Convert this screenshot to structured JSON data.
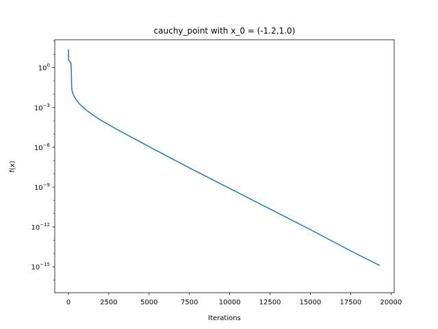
{
  "chart_data": {
    "type": "line",
    "title": "cauchy_point with x_0 = (-1.2,1.0)",
    "xlabel": "Iterations",
    "ylabel": "f(x)",
    "yscale": "log",
    "xlim": [
      -850,
      20200
    ],
    "ylim_log10": [
      -16.95,
      2.1
    ],
    "x_ticks": [
      {
        "value": 0,
        "label": "0"
      },
      {
        "value": 2500,
        "label": "2500"
      },
      {
        "value": 5000,
        "label": "5000"
      },
      {
        "value": 7500,
        "label": "7500"
      },
      {
        "value": 10000,
        "label": "10000"
      },
      {
        "value": 12500,
        "label": "12500"
      },
      {
        "value": 15000,
        "label": "15000"
      },
      {
        "value": 17500,
        "label": "17500"
      },
      {
        "value": 20000,
        "label": "20000"
      }
    ],
    "y_ticks": [
      {
        "exp": 0,
        "label": "10",
        "sup": "0"
      },
      {
        "exp": -3,
        "label": "10",
        "sup": "−3"
      },
      {
        "exp": -6,
        "label": "10",
        "sup": "−6"
      },
      {
        "exp": -9,
        "label": "10",
        "sup": "−9"
      },
      {
        "exp": -12,
        "label": "10",
        "sup": "−12"
      },
      {
        "exp": -15,
        "label": "10",
        "sup": "−15"
      }
    ],
    "series": [
      {
        "name": "f(x)",
        "color": "#1f77b4",
        "points_log10": [
          [
            0,
            1.38
          ],
          [
            5,
            0.6
          ],
          [
            10,
            0.55
          ],
          [
            30,
            0.52
          ],
          [
            60,
            0.5
          ],
          [
            100,
            0.45
          ],
          [
            130,
            0.4
          ],
          [
            160,
            0.3
          ],
          [
            180,
            -0.3
          ],
          [
            190,
            -1.0
          ],
          [
            200,
            -1.5
          ],
          [
            220,
            -1.7
          ],
          [
            260,
            -1.9
          ],
          [
            350,
            -2.15
          ],
          [
            500,
            -2.45
          ],
          [
            700,
            -2.75
          ],
          [
            1000,
            -3.1
          ],
          [
            1500,
            -3.55
          ],
          [
            2000,
            -3.95
          ],
          [
            2500,
            -4.3
          ],
          [
            3000,
            -4.65
          ],
          [
            4000,
            -5.3
          ],
          [
            5000,
            -5.95
          ],
          [
            7500,
            -7.55
          ],
          [
            10000,
            -9.1
          ],
          [
            12500,
            -10.65
          ],
          [
            15000,
            -12.2
          ],
          [
            17500,
            -13.8
          ],
          [
            19300,
            -14.9
          ]
        ]
      }
    ]
  }
}
